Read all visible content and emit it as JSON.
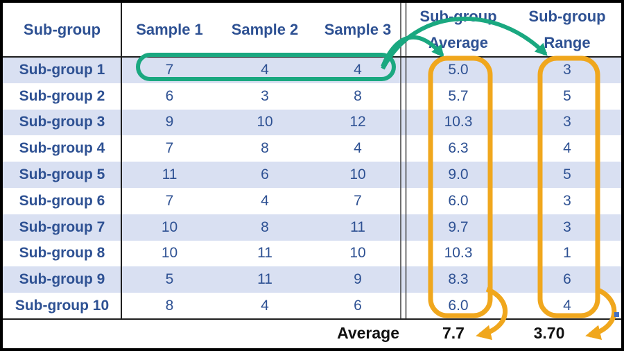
{
  "colors": {
    "text_blue": "#2E5193",
    "stripe": "#D9E0F2",
    "annotation_green": "#1AA880",
    "annotation_orange": "#F0A71D",
    "marker_blue": "#4472C4"
  },
  "table": {
    "headers": {
      "subgroup": "Sub-group",
      "sample1": "Sample 1",
      "sample2": "Sample 2",
      "sample3": "Sample 3",
      "average_line1": "Sub-group",
      "average_line2": "Average",
      "range_line1": "Sub-group",
      "range_line2": "Range"
    },
    "rows": [
      {
        "label": "Sub-group 1",
        "s1": "7",
        "s2": "4",
        "s3": "4",
        "avg": "5.0",
        "range": "3"
      },
      {
        "label": "Sub-group 2",
        "s1": "6",
        "s2": "3",
        "s3": "8",
        "avg": "5.7",
        "range": "5"
      },
      {
        "label": "Sub-group 3",
        "s1": "9",
        "s2": "10",
        "s3": "12",
        "avg": "10.3",
        "range": "3"
      },
      {
        "label": "Sub-group 4",
        "s1": "7",
        "s2": "8",
        "s3": "4",
        "avg": "6.3",
        "range": "4"
      },
      {
        "label": "Sub-group 5",
        "s1": "11",
        "s2": "6",
        "s3": "10",
        "avg": "9.0",
        "range": "5"
      },
      {
        "label": "Sub-group 6",
        "s1": "7",
        "s2": "4",
        "s3": "7",
        "avg": "6.0",
        "range": "3"
      },
      {
        "label": "Sub-group 7",
        "s1": "10",
        "s2": "8",
        "s3": "11",
        "avg": "9.7",
        "range": "3"
      },
      {
        "label": "Sub-group 8",
        "s1": "10",
        "s2": "11",
        "s3": "10",
        "avg": "10.3",
        "range": "1"
      },
      {
        "label": "Sub-group 9",
        "s1": "5",
        "s2": "11",
        "s3": "9",
        "avg": "8.3",
        "range": "6"
      },
      {
        "label": "Sub-group 10",
        "s1": "8",
        "s2": "4",
        "s3": "6",
        "avg": "6.0",
        "range": "4"
      }
    ],
    "footer": {
      "label": "Average",
      "average_total": "7.7",
      "range_total": "3.70"
    }
  }
}
